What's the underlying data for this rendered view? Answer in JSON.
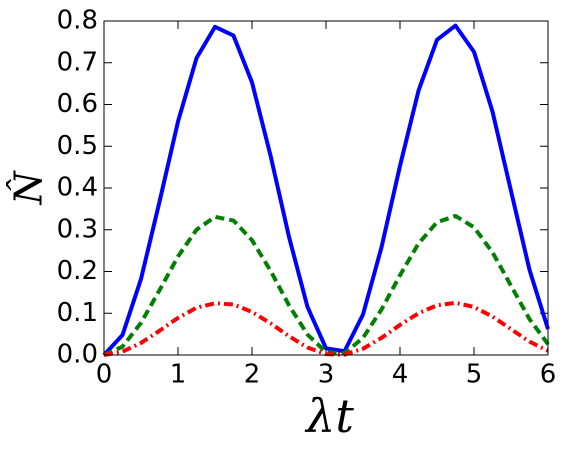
{
  "chart_data": {
    "type": "line",
    "x_label": "λt",
    "y_label": "N̂",
    "x": [
      0,
      0.25,
      0.5,
      0.75,
      1,
      1.25,
      1.5,
      1.75,
      2,
      2.25,
      2.5,
      2.75,
      3,
      3.25,
      3.5,
      3.75,
      4,
      4.25,
      4.5,
      4.75,
      5,
      5.25,
      5.5,
      5.75,
      6
    ],
    "series": [
      {
        "color": "#0000ff",
        "style": "solid",
        "values": [
          0,
          0.048,
          0.182,
          0.367,
          0.559,
          0.711,
          0.786,
          0.765,
          0.653,
          0.478,
          0.283,
          0.115,
          0.016,
          0.009,
          0.097,
          0.258,
          0.453,
          0.633,
          0.755,
          0.789,
          0.726,
          0.583,
          0.393,
          0.204,
          0.062
        ]
      },
      {
        "color": "#007f00",
        "style": "dashed",
        "values": [
          0,
          0.02,
          0.077,
          0.155,
          0.236,
          0.3,
          0.331,
          0.322,
          0.275,
          0.202,
          0.119,
          0.049,
          0.007,
          0.004,
          0.041,
          0.109,
          0.191,
          0.267,
          0.318,
          0.333,
          0.306,
          0.246,
          0.166,
          0.086,
          0.026
        ]
      },
      {
        "color": "#ff0000",
        "style": "dashdot",
        "values": [
          0,
          0.008,
          0.029,
          0.058,
          0.089,
          0.113,
          0.124,
          0.121,
          0.103,
          0.076,
          0.045,
          0.018,
          0.002,
          0.001,
          0.015,
          0.041,
          0.072,
          0.1,
          0.119,
          0.125,
          0.115,
          0.092,
          0.062,
          0.032,
          0.01
        ]
      }
    ],
    "xlim": [
      0,
      6
    ],
    "xticks": [
      0,
      1,
      2,
      3,
      4,
      5,
      6
    ],
    "ylim": [
      0,
      0.8
    ],
    "yticks": [
      {
        "value": 0,
        "label": "0.0"
      },
      0.1,
      0.2,
      0.3,
      0.4,
      0.5,
      0.6,
      0.7,
      0.8
    ],
    "grid": false
  }
}
